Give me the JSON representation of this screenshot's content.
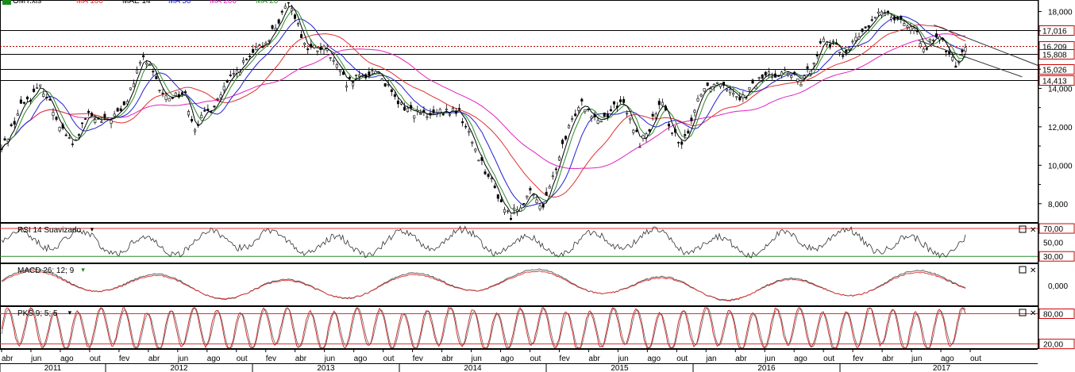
{
  "chart_data": {
    "type": "line",
    "title": "",
    "main_panel": {
      "file_label": "OMT.xls",
      "legend": [
        {
          "name": "MA 100",
          "color": "#e03030"
        },
        {
          "name": "MAE 14",
          "color": "#000000"
        },
        {
          "name": "MA 50",
          "color": "#2020d0"
        },
        {
          "name": "MA 200",
          "color": "#e020c0"
        },
        {
          "name": "MA 20",
          "color": "#2a8a2a"
        }
      ],
      "y_ticks": [
        "18,000",
        "14,000",
        "12,000",
        "10,000",
        "8,000"
      ],
      "ylim": [
        7000,
        18600
      ],
      "level_lines": [
        {
          "label": "17,016",
          "value": 17016,
          "style": "solid"
        },
        {
          "label": "16,209",
          "value": 16209,
          "style": "dotted"
        },
        {
          "label": "15,808",
          "value": 15808,
          "style": "solid"
        },
        {
          "label": "15,026",
          "value": 15026,
          "style": "solid"
        },
        {
          "label": "14,413",
          "value": 14413,
          "style": "solid"
        }
      ],
      "price_path": [
        {
          "t": 0.0,
          "v": 10800
        },
        {
          "t": 0.02,
          "v": 13200
        },
        {
          "t": 0.04,
          "v": 14100
        },
        {
          "t": 0.055,
          "v": 12400
        },
        {
          "t": 0.07,
          "v": 11000
        },
        {
          "t": 0.085,
          "v": 12600
        },
        {
          "t": 0.1,
          "v": 12200
        },
        {
          "t": 0.12,
          "v": 12900
        },
        {
          "t": 0.14,
          "v": 15700
        },
        {
          "t": 0.16,
          "v": 13500
        },
        {
          "t": 0.18,
          "v": 13800
        },
        {
          "t": 0.19,
          "v": 12000
        },
        {
          "t": 0.21,
          "v": 13200
        },
        {
          "t": 0.23,
          "v": 14800
        },
        {
          "t": 0.26,
          "v": 16400
        },
        {
          "t": 0.285,
          "v": 18500
        },
        {
          "t": 0.3,
          "v": 16100
        },
        {
          "t": 0.32,
          "v": 16000
        },
        {
          "t": 0.34,
          "v": 14200
        },
        {
          "t": 0.37,
          "v": 15000
        },
        {
          "t": 0.39,
          "v": 13200
        },
        {
          "t": 0.42,
          "v": 12500
        },
        {
          "t": 0.45,
          "v": 12900
        },
        {
          "t": 0.47,
          "v": 10500
        },
        {
          "t": 0.5,
          "v": 7300
        },
        {
          "t": 0.52,
          "v": 8500
        },
        {
          "t": 0.535,
          "v": 7900
        },
        {
          "t": 0.55,
          "v": 10500
        },
        {
          "t": 0.57,
          "v": 13400
        },
        {
          "t": 0.59,
          "v": 12300
        },
        {
          "t": 0.61,
          "v": 13400
        },
        {
          "t": 0.63,
          "v": 11100
        },
        {
          "t": 0.65,
          "v": 13200
        },
        {
          "t": 0.67,
          "v": 10800
        },
        {
          "t": 0.69,
          "v": 14000
        },
        {
          "t": 0.71,
          "v": 14400
        },
        {
          "t": 0.73,
          "v": 13500
        },
        {
          "t": 0.75,
          "v": 14600
        },
        {
          "t": 0.77,
          "v": 14900
        },
        {
          "t": 0.79,
          "v": 14300
        },
        {
          "t": 0.81,
          "v": 16600
        },
        {
          "t": 0.83,
          "v": 15800
        },
        {
          "t": 0.85,
          "v": 17000
        },
        {
          "t": 0.87,
          "v": 18100
        },
        {
          "t": 0.89,
          "v": 17500
        },
        {
          "t": 0.91,
          "v": 16200
        },
        {
          "t": 0.925,
          "v": 16600
        },
        {
          "t": 0.94,
          "v": 15200
        },
        {
          "t": 0.95,
          "v": 16300
        }
      ],
      "trendlines": [
        {
          "from": {
            "t": 0.885,
            "v": 16500
          },
          "to": {
            "t": 0.985,
            "v": 14600
          }
        },
        {
          "from": {
            "t": 0.9,
            "v": 17300
          },
          "to": {
            "t": 1.0,
            "v": 15200
          }
        }
      ]
    },
    "rsi_panel": {
      "label": "RSI 14 Suavizado",
      "levels": [
        {
          "label": "70,00",
          "value": 70
        },
        {
          "label": "50,00",
          "value": 50
        },
        {
          "label": "30,00",
          "value": 30
        }
      ],
      "ylim": [
        20,
        78
      ]
    },
    "macd_panel": {
      "label": "MACD 26; 12; 9",
      "zero_label": "0,000"
    },
    "pks_panel": {
      "label": "PKS 9; 5; 5",
      "levels": [
        {
          "label": "80,00",
          "value": 80
        },
        {
          "label": "20,00",
          "value": 20
        }
      ],
      "ylim": [
        10,
        95
      ]
    },
    "x_axis": {
      "month_ticks": [
        "abr",
        "jun",
        "ago",
        "out",
        "fev",
        "abr",
        "jun",
        "ago",
        "out",
        "fev",
        "abr",
        "jun",
        "ago",
        "out",
        "fev",
        "abr",
        "jun",
        "ago",
        "out",
        "fev",
        "abr",
        "jun",
        "ago",
        "out",
        "jan",
        "abr",
        "jun",
        "ago",
        "out",
        "fev",
        "abr",
        "jun",
        "ago",
        "out"
      ],
      "years": [
        "2011",
        "2012",
        "2013",
        "2014",
        "2015",
        "2016",
        "2017"
      ]
    },
    "panel_controls": {
      "maximize_icon": "square-icon",
      "close_icon": "close-icon"
    }
  }
}
